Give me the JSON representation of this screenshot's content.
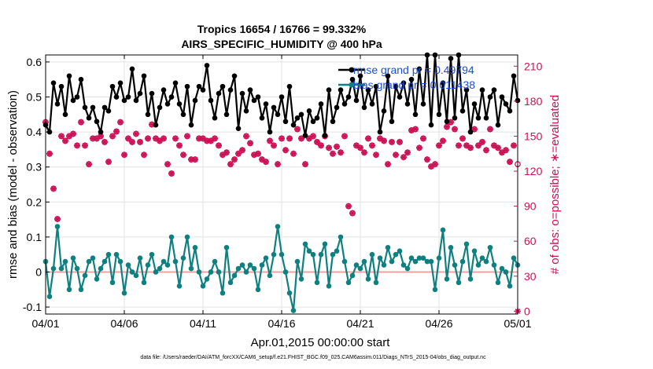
{
  "chart_data": {
    "type": "line",
    "title": [
      "Tropics 16654 / 16766 = 99.332%",
      "AIRS_SPECIFIC_HUMIDITY @ 400 hPa"
    ],
    "xlabel": "Apr.01,2015 00:00:00 start",
    "ylabel": "rmse and bias (model - observation)",
    "ylabel_right": "# of obs: o=possible; ∗=evaluated",
    "x_tick_labels": [
      "04/01",
      "04/06",
      "04/11",
      "04/16",
      "04/21",
      "04/26",
      "05/01"
    ],
    "xlim": [
      0,
      120
    ],
    "ylim": [
      -0.12,
      0.62
    ],
    "y_ticks": [
      "-0.1",
      "0",
      "0.1",
      "0.2",
      "0.3",
      "0.4",
      "0.5",
      "0.6"
    ],
    "ylim_right": [
      -2.45,
      219.6
    ],
    "y_ticks_right": [
      "0",
      "30",
      "60",
      "90",
      "120",
      "150",
      "180",
      "210"
    ],
    "footer": "data file: /Users/raeder/DAI/ATM_forcXX/CAM6_setup/f.e21.FHIST_BGC.f09_025.CAM6assim.011/Diags_NTrS_2015-04/obs_diag_output.nc",
    "legend_position": "top-right",
    "colors": {
      "rmse": "#000000",
      "bias": "#0f8080",
      "obs": "#cc1155",
      "zero": "#f0a0a0"
    },
    "series": [
      {
        "name": "rmse",
        "legend": "rmse grand pr = 0.49794",
        "values": [
          0.42,
          0.4,
          0.54,
          0.48,
          0.53,
          0.45,
          0.56,
          0.49,
          0.5,
          0.55,
          0.47,
          0.44,
          0.47,
          0.43,
          0.4,
          0.47,
          0.46,
          0.53,
          0.5,
          0.54,
          0.49,
          0.5,
          0.58,
          0.49,
          0.51,
          0.56,
          0.45,
          0.51,
          0.42,
          0.47,
          0.52,
          0.48,
          0.5,
          0.54,
          0.48,
          0.45,
          0.53,
          0.42,
          0.49,
          0.53,
          0.52,
          0.59,
          0.49,
          0.44,
          0.51,
          0.53,
          0.45,
          0.52,
          0.56,
          0.41,
          0.51,
          0.46,
          0.52,
          0.49,
          0.5,
          0.44,
          0.48,
          0.4,
          0.47,
          0.45,
          0.5,
          0.43,
          0.53,
          0.42,
          0.44,
          0.45,
          0.39,
          0.46,
          0.43,
          0.44,
          0.48,
          0.39,
          0.52,
          0.43,
          0.47,
          0.52,
          0.48,
          0.5,
          0.55,
          0.49,
          0.56,
          0.47,
          0.52,
          0.48,
          0.53,
          0.4,
          0.46,
          0.56,
          0.43,
          0.53,
          0.5,
          0.54,
          0.48,
          0.55,
          0.45,
          0.58,
          0.48,
          0.62,
          0.42,
          0.62,
          0.45,
          0.54,
          0.43,
          0.61,
          0.44,
          0.62,
          0.46,
          0.52,
          0.4,
          0.48,
          0.44,
          0.52,
          0.44,
          0.5,
          0.52,
          0.42,
          0.5,
          0.48,
          0.46,
          0.56,
          0.49
        ]
      },
      {
        "name": "bias",
        "legend": "bias grand pr = 0.011438",
        "values": [
          0.03,
          -0.07,
          0.01,
          0.13,
          0.01,
          0.03,
          -0.05,
          0.04,
          0.01,
          -0.05,
          -0.01,
          0.03,
          0.04,
          -0.02,
          0.01,
          0.03,
          0.05,
          -0.03,
          0.05,
          0.03,
          -0.06,
          0.02,
          0.0,
          -0.01,
          0.04,
          -0.03,
          0.02,
          0.05,
          0.0,
          0.01,
          0.03,
          0.02,
          0.1,
          0.03,
          -0.04,
          0.04,
          0.1,
          0.01,
          0.07,
          0.0,
          -0.04,
          -0.02,
          0.0,
          0.03,
          0.0,
          -0.06,
          0.07,
          -0.03,
          -0.01,
          0.01,
          0.02,
          0.0,
          0.02,
          0.01,
          -0.05,
          0.02,
          0.04,
          -0.01,
          0.05,
          0.13,
          0.05,
          0.0,
          -0.06,
          -0.11,
          0.03,
          -0.02,
          0.08,
          0.06,
          0.05,
          -0.03,
          0.05,
          0.08,
          -0.04,
          0.05,
          0.06,
          0.1,
          0.03,
          -0.03,
          -0.01,
          0.02,
          0.01,
          0.03,
          -0.02,
          0.05,
          -0.03,
          0.04,
          0.02,
          0.07,
          0.03,
          0.05,
          0.06,
          0.02,
          0.01,
          0.04,
          0.03,
          0.04,
          0.04,
          0.03,
          0.03,
          -0.05,
          0.04,
          0.12,
          -0.02,
          0.07,
          0.02,
          -0.03,
          0.03,
          0.08,
          -0.02,
          0.06,
          0.02,
          0.04,
          0.03,
          0.07,
          0.02,
          -0.03,
          0.01,
          0.0,
          -0.04,
          0.04,
          0.02
        ]
      },
      {
        "name": "obs_possible",
        "marker": "o",
        "axis": "right",
        "values": [
          162,
          135,
          105,
          79,
          150,
          146,
          150,
          152,
          142,
          162,
          142,
          126,
          148,
          148,
          150,
          145,
          128,
          150,
          154,
          162,
          134,
          148,
          145,
          152,
          145,
          134,
          148,
          160,
          148,
          146,
          148,
          126,
          118,
          148,
          142,
          134,
          150,
          130,
          130,
          148,
          148,
          146,
          146,
          148,
          142,
          134,
          136,
          126,
          130,
          135,
          138,
          150,
          144,
          134,
          135,
          130,
          128,
          146,
          142,
          126,
          148,
          138,
          148,
          135,
          156,
          148,
          126,
          148,
          150,
          145,
          142,
          150,
          140,
          135,
          141,
          136,
          150,
          90,
          84,
          142,
          140,
          136,
          148,
          142,
          134,
          148,
          146,
          126,
          145,
          134,
          145,
          132,
          136,
          155,
          156,
          140,
          148,
          130,
          124,
          126,
          142,
          146,
          158,
          162,
          156,
          142,
          148,
          142,
          140,
          156,
          142,
          145,
          138,
          156,
          142,
          140,
          136,
          138,
          128,
          142,
          126
        ]
      },
      {
        "name": "obs_evaluated",
        "marker": "*",
        "axis": "right",
        "values": [
          162,
          135,
          105,
          79,
          150,
          146,
          150,
          152,
          142,
          162,
          142,
          126,
          148,
          148,
          150,
          145,
          128,
          150,
          154,
          162,
          134,
          148,
          145,
          152,
          145,
          134,
          148,
          160,
          148,
          146,
          148,
          126,
          118,
          148,
          142,
          134,
          150,
          130,
          130,
          148,
          148,
          146,
          146,
          148,
          142,
          134,
          136,
          126,
          130,
          135,
          138,
          150,
          144,
          134,
          135,
          130,
          128,
          146,
          142,
          126,
          148,
          138,
          148,
          135,
          156,
          148,
          126,
          148,
          150,
          145,
          142,
          150,
          140,
          135,
          141,
          136,
          150,
          90,
          84,
          142,
          140,
          136,
          148,
          142,
          134,
          148,
          146,
          126,
          145,
          134,
          145,
          132,
          136,
          155,
          156,
          140,
          148,
          130,
          124,
          126,
          142,
          146,
          158,
          162,
          156,
          142,
          148,
          142,
          140,
          156,
          142,
          145,
          138,
          156,
          142,
          140,
          136,
          138,
          128,
          142,
          0
        ]
      }
    ]
  }
}
